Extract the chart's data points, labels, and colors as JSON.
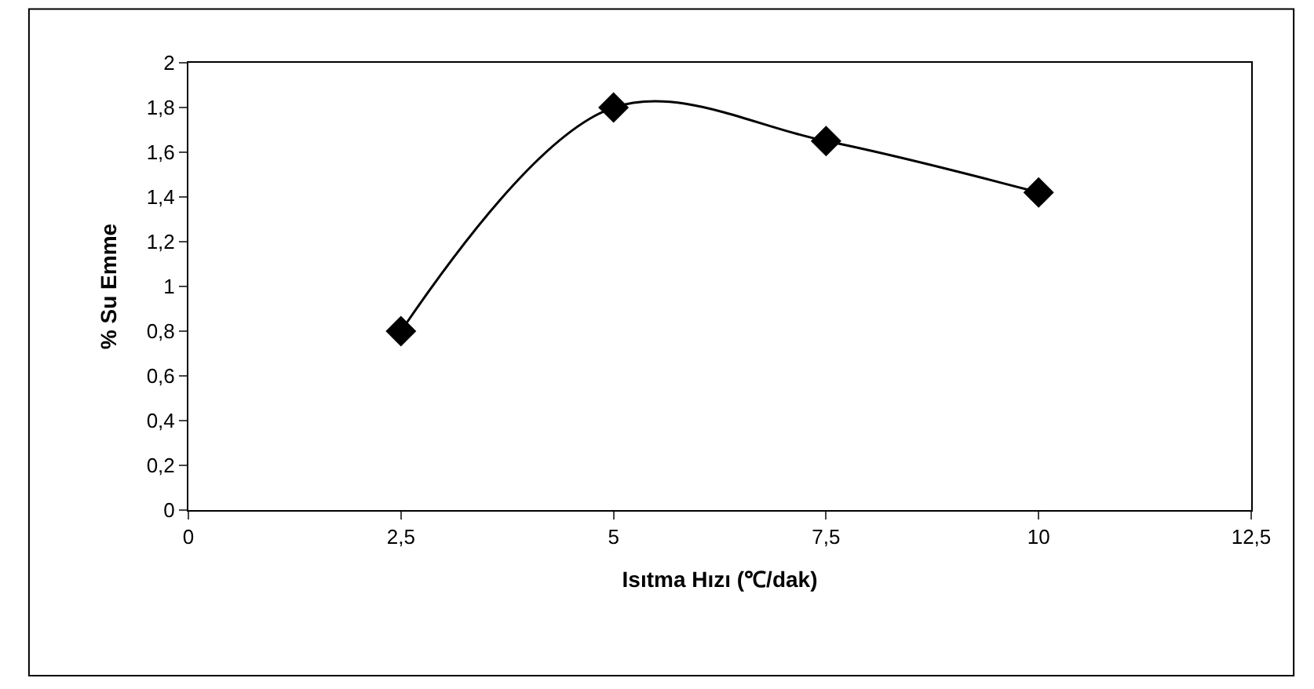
{
  "chart_data": {
    "type": "line",
    "xlabel": "Isıtma Hızı (℃/dak)",
    "ylabel": "% Su Emme",
    "x": [
      2.5,
      5,
      7.5,
      10
    ],
    "series": [
      {
        "color": "#000000",
        "values": [
          0.8,
          1.8,
          1.65,
          1.42
        ]
      }
    ],
    "xlim": [
      0,
      12.5
    ],
    "xticks": [
      0,
      {
        "value": 2.5,
        "label": "2,5"
      },
      5,
      {
        "value": 7.5,
        "label": "7,5"
      },
      10,
      {
        "value": 12.5,
        "label": "12,5"
      }
    ],
    "ylim": [
      0,
      2
    ],
    "yticks": [
      0,
      {
        "value": 0.2,
        "label": "0,2"
      },
      {
        "value": 0.4,
        "label": "0,4"
      },
      {
        "value": 0.6,
        "label": "0,6"
      },
      {
        "value": 0.8,
        "label": "0,8"
      },
      1,
      {
        "value": 1.2,
        "label": "1,2"
      },
      {
        "value": 1.4,
        "label": "1,4"
      },
      {
        "value": 1.6,
        "label": "1,6"
      },
      {
        "value": 1.8,
        "label": "1,8"
      },
      2
    ],
    "marker": "diamond",
    "line_style": "solid"
  }
}
